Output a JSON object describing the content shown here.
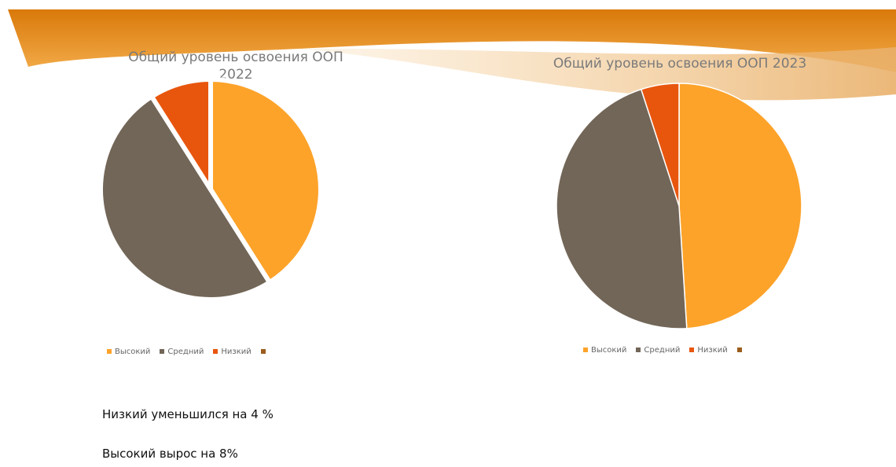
{
  "chart_data": [
    {
      "type": "pie",
      "title": "Общий уровень освоения ООП 2022",
      "categories": [
        "Высокий",
        "Средний",
        "Низкий",
        null
      ],
      "values": [
        41,
        50,
        9,
        null
      ],
      "colors": [
        "#fda32a",
        "#726658",
        "#e8560e",
        "#9b5d1c"
      ]
    },
    {
      "type": "pie",
      "title": "Общий уровень освоения ООП 2023",
      "categories": [
        "Высокий",
        "Средний",
        "Низкий",
        null
      ],
      "values": [
        49,
        46,
        5,
        null
      ],
      "colors": [
        "#fda32a",
        "#726658",
        "#e8560e",
        "#9b5d1c"
      ]
    }
  ],
  "text": [
    "Низкий уменьшился на 4 %",
    "Высокий вырос на 8%"
  ]
}
